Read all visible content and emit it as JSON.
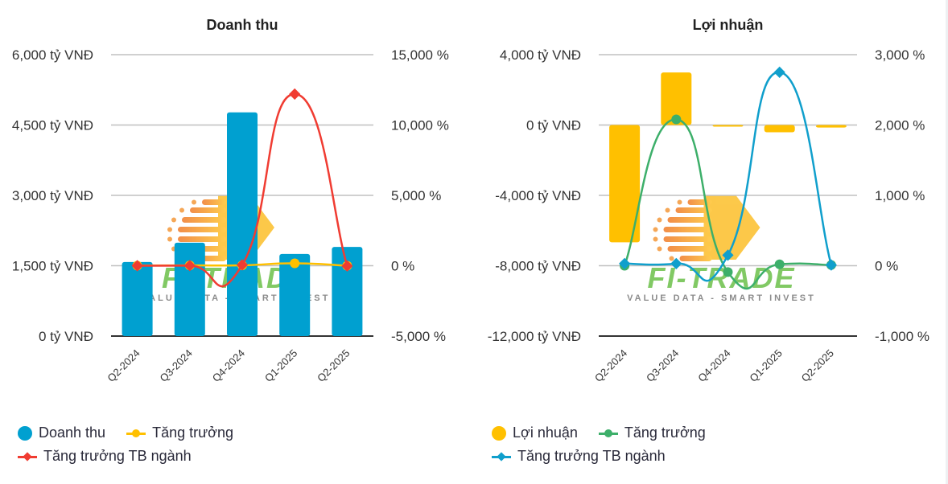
{
  "chart_data": [
    {
      "type": "bar",
      "title": "Doanh thu",
      "categories": [
        "Q2-2024",
        "Q3-2024",
        "Q4-2024",
        "Q1-2025",
        "Q2-2025"
      ],
      "y_left": {
        "unit": "tỷ VNĐ",
        "range": [
          0,
          6000
        ],
        "ticks": [
          0,
          1500,
          3000,
          4500,
          6000
        ],
        "tick_labels": [
          "0 tỷ VNĐ",
          "1,500 tỷ VNĐ",
          "3,000 tỷ VNĐ",
          "4,500 tỷ VNĐ",
          "6,000 tỷ VNĐ"
        ]
      },
      "y_right": {
        "unit": "%",
        "range": [
          -5000,
          15000
        ],
        "ticks": [
          -5000,
          0,
          5000,
          10000,
          15000
        ],
        "tick_labels": [
          "-5,000 %",
          "0 %",
          "5,000 %",
          "10,000 %",
          "15,000 %"
        ]
      },
      "grid": true,
      "legend_position": "bottom-left",
      "series": [
        {
          "name": "Doanh thu",
          "kind": "bar",
          "axis": "left",
          "color": "#00a0d0",
          "values": [
            1580,
            1990,
            4770,
            1750,
            1900
          ]
        },
        {
          "name": "Tăng trưởng",
          "kind": "line",
          "axis": "right",
          "color": "#ffc000",
          "marker": "circle",
          "values": [
            10,
            20,
            30,
            170,
            0
          ]
        },
        {
          "name": "Tăng trưởng TB ngành",
          "kind": "line",
          "axis": "right",
          "color": "#f03c32",
          "marker": "diamond",
          "values": [
            0,
            10,
            60,
            12200,
            -20
          ]
        }
      ]
    },
    {
      "type": "bar",
      "title": "Lợi nhuận",
      "categories": [
        "Q2-2024",
        "Q3-2024",
        "Q4-2024",
        "Q1-2025",
        "Q2-2025"
      ],
      "y_left": {
        "unit": "tỷ VNĐ",
        "range": [
          -12000,
          4000
        ],
        "ticks": [
          -12000,
          -8000,
          -4000,
          0,
          4000
        ],
        "tick_labels": [
          "-12,000 tỷ VNĐ",
          "-8,000 tỷ VNĐ",
          "-4,000 tỷ VNĐ",
          "0 tỷ VNĐ",
          "4,000 tỷ VNĐ"
        ]
      },
      "y_right": {
        "unit": "%",
        "range": [
          -1000,
          3000
        ],
        "ticks": [
          -1000,
          0,
          1000,
          2000,
          3000
        ],
        "tick_labels": [
          "-1,000 %",
          "0 %",
          "1,000 %",
          "2,000 %",
          "3,000 %"
        ]
      },
      "grid": true,
      "legend_position": "bottom-left",
      "series": [
        {
          "name": "Lợi nhuận",
          "kind": "bar",
          "axis": "left",
          "color": "#ffc000",
          "values": [
            -6670,
            2990,
            -60,
            -410,
            -140
          ]
        },
        {
          "name": "Tăng trưởng",
          "kind": "line",
          "axis": "right",
          "color": "#3daf6a",
          "marker": "circle",
          "values": [
            0,
            2080,
            -90,
            20,
            10
          ]
        },
        {
          "name": "Tăng trưởng TB ngành",
          "kind": "line",
          "axis": "right",
          "color": "#109fcc",
          "marker": "diamond",
          "values": [
            30,
            30,
            150,
            2750,
            10
          ]
        }
      ]
    }
  ],
  "watermark": {
    "brand": "FI-TRADE",
    "tagline": "VALUE DATA - SMART INVEST"
  }
}
